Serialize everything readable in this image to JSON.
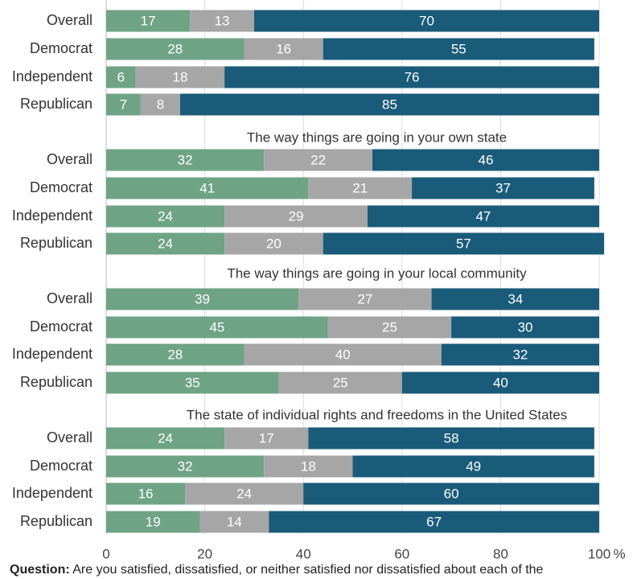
{
  "chart_data": {
    "type": "bar",
    "orientation": "horizontal",
    "stacked": true,
    "categories": [
      "Overall",
      "Democrat",
      "Independent",
      "Republican"
    ],
    "panels": [
      {
        "title": "",
        "series": [
          {
            "values": [
              17,
              28,
              6,
              7
            ]
          },
          {
            "values": [
              13,
              16,
              18,
              8
            ]
          },
          {
            "values": [
              70,
              55,
              76,
              85
            ]
          }
        ]
      },
      {
        "title": "The way things are going in your own state",
        "series": [
          {
            "values": [
              32,
              41,
              24,
              24
            ]
          },
          {
            "values": [
              22,
              21,
              29,
              20
            ]
          },
          {
            "values": [
              46,
              37,
              47,
              57
            ]
          }
        ]
      },
      {
        "title": "The way things are going in your local community",
        "series": [
          {
            "values": [
              39,
              45,
              28,
              35
            ]
          },
          {
            "values": [
              27,
              25,
              40,
              25
            ]
          },
          {
            "values": [
              34,
              30,
              32,
              40
            ]
          }
        ]
      },
      {
        "title": "The state of individual rights and freedoms in the United States",
        "series": [
          {
            "values": [
              24,
              32,
              16,
              19
            ]
          },
          {
            "values": [
              17,
              18,
              24,
              14
            ]
          },
          {
            "values": [
              58,
              49,
              60,
              67
            ]
          }
        ]
      }
    ],
    "series_colors": [
      "#6fa385",
      "#a6a6a6",
      "#1a5b7a"
    ],
    "xlim": [
      0,
      100
    ],
    "xticks": [
      "0",
      "20",
      "40",
      "60",
      "80",
      "100"
    ],
    "xunit": "%",
    "grid": true
  },
  "footer": {
    "question_label": "Question:",
    "question_text": "Are you satisfied, dissatisfied, or neither satisfied nor dissatisfied about each of the"
  }
}
